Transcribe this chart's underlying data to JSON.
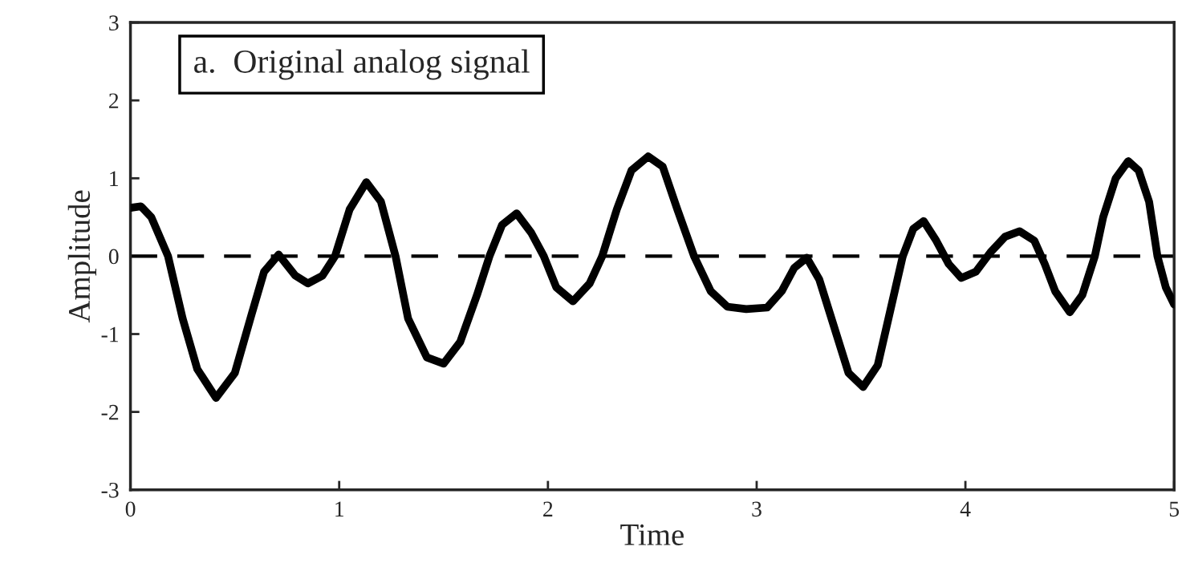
{
  "chart_data": {
    "type": "line",
    "xlabel": "Time",
    "ylabel": "Amplitude",
    "annotations": [
      "a.  Original analog signal"
    ],
    "xlim": [
      0,
      5
    ],
    "xticks": [
      0,
      1,
      2,
      3,
      4,
      5
    ],
    "ylim": [
      -3,
      3
    ],
    "yticks": [
      -3,
      -2,
      -1,
      0,
      1,
      2,
      3
    ],
    "ref_lines": [
      {
        "axis": "y",
        "value": 0,
        "color": "#000000",
        "line_style": "dashed"
      }
    ],
    "grid": false,
    "marker": "none",
    "line_style": "solid",
    "series": [
      {
        "color": "#000000",
        "x": [
          0,
          0.05,
          0.1,
          0.18,
          0.25,
          0.32,
          0.41,
          0.5,
          0.58,
          0.64,
          0.71,
          0.79,
          0.85,
          0.92,
          0.98,
          1.05,
          1.13,
          1.2,
          1.27,
          1.33,
          1.42,
          1.5,
          1.58,
          1.66,
          1.72,
          1.78,
          1.85,
          1.92,
          1.98,
          2.04,
          2.12,
          2.2,
          2.26,
          2.33,
          2.4,
          2.48,
          2.55,
          2.62,
          2.7,
          2.78,
          2.86,
          2.95,
          3.05,
          3.12,
          3.18,
          3.24,
          3.3,
          3.37,
          3.44,
          3.51,
          3.58,
          3.64,
          3.7,
          3.75,
          3.8,
          3.86,
          3.92,
          3.98,
          4.05,
          4.12,
          4.19,
          4.26,
          4.33,
          4.38,
          4.43,
          4.5,
          4.56,
          4.62,
          4.66,
          4.72,
          4.78,
          4.83,
          4.88,
          4.92,
          4.96,
          5.0
        ],
        "values": [
          0.62,
          0.64,
          0.5,
          0.0,
          -0.8,
          -1.45,
          -1.82,
          -1.5,
          -0.75,
          -0.2,
          0.02,
          -0.25,
          -0.35,
          -0.25,
          0.0,
          0.6,
          0.95,
          0.7,
          0.0,
          -0.8,
          -1.3,
          -1.38,
          -1.1,
          -0.5,
          0.0,
          0.4,
          0.55,
          0.3,
          0.0,
          -0.4,
          -0.58,
          -0.35,
          0.0,
          0.6,
          1.1,
          1.28,
          1.15,
          0.6,
          0.0,
          -0.45,
          -0.65,
          -0.68,
          -0.66,
          -0.45,
          -0.15,
          -0.02,
          -0.3,
          -0.9,
          -1.5,
          -1.68,
          -1.4,
          -0.7,
          0.0,
          0.35,
          0.45,
          0.2,
          -0.1,
          -0.28,
          -0.2,
          0.05,
          0.25,
          0.32,
          0.2,
          -0.1,
          -0.45,
          -0.72,
          -0.5,
          0.0,
          0.5,
          1.0,
          1.22,
          1.1,
          0.7,
          0.0,
          -0.4,
          -0.62
        ]
      }
    ]
  }
}
